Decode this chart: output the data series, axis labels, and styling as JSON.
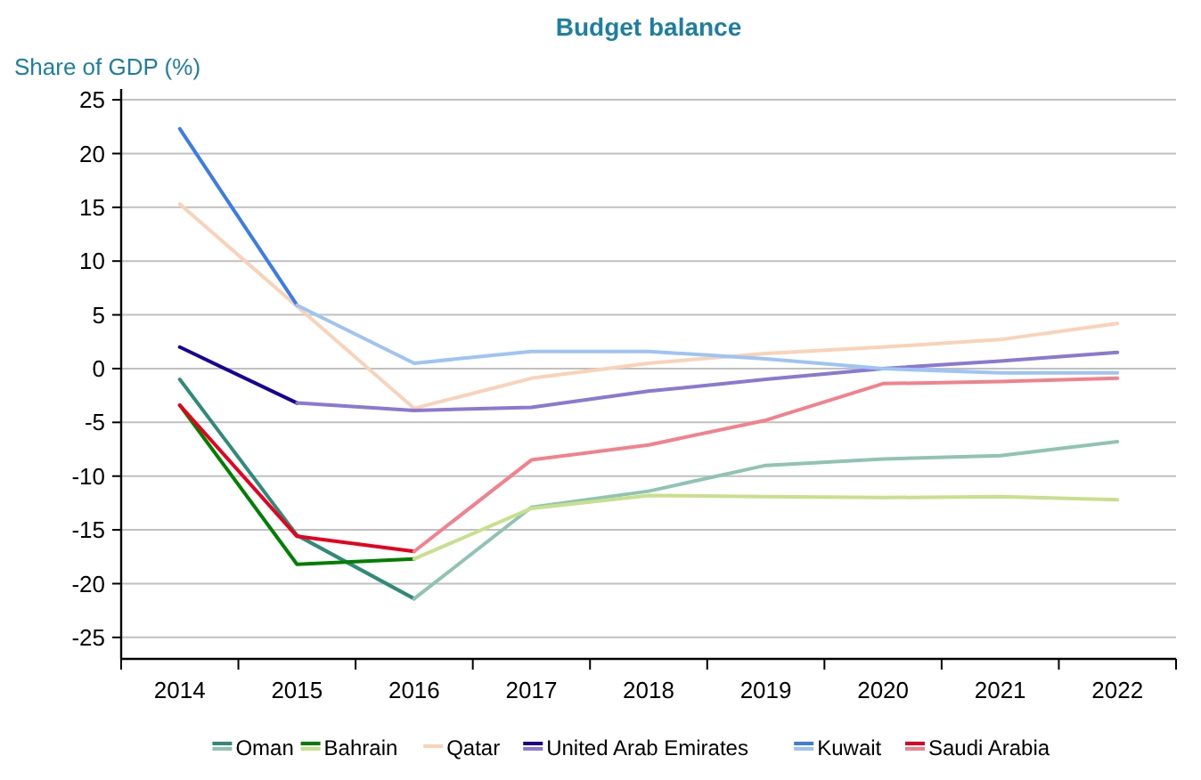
{
  "chart_data": {
    "type": "line",
    "title": "Budget balance",
    "ylabel": "Share of GDP (%)",
    "categories": [
      "2014",
      "2015",
      "2016",
      "2017",
      "2018",
      "2019",
      "2020",
      "2021",
      "2022"
    ],
    "ylim": [
      -27,
      26
    ],
    "yticks": [
      -25,
      -20,
      -15,
      -10,
      -5,
      0,
      5,
      10,
      15,
      20,
      25
    ],
    "grid": "y",
    "legend": "bottom",
    "marker": "none",
    "line_style": "solid",
    "series": [
      {
        "name": "Oman",
        "color": "#2e8b7a",
        "values": [
          -1.0,
          -15.5,
          -21.4,
          null,
          null,
          null,
          null,
          null,
          null
        ]
      },
      {
        "color": "#8fc4b4",
        "values": [
          null,
          null,
          -21.4,
          -12.9,
          -11.4,
          -9.0,
          -8.4,
          -8.1,
          -6.8
        ]
      },
      {
        "name": "Bahrain",
        "color": "#008000",
        "values": [
          -3.4,
          -18.2,
          -17.7,
          null,
          null,
          null,
          null,
          null,
          null
        ]
      },
      {
        "color": "#c8e08c",
        "values": [
          null,
          null,
          -17.7,
          -13.0,
          -11.8,
          -11.9,
          -12.0,
          -11.9,
          -12.2
        ]
      },
      {
        "name": "Qatar",
        "color": "#f9d2b8",
        "values": [
          15.3,
          5.8,
          -3.7,
          -0.9,
          0.5,
          1.4,
          2.0,
          2.7,
          4.2
        ]
      },
      {
        "name": "United Arab Emirates",
        "color": "#1a0099",
        "values": [
          2.0,
          -3.2,
          null,
          null,
          null,
          null,
          null,
          null,
          null
        ]
      },
      {
        "color": "#8a78d2",
        "values": [
          null,
          -3.2,
          -3.9,
          -3.6,
          -2.1,
          -1.0,
          0.0,
          0.7,
          1.5
        ]
      },
      {
        "name": "Kuwait",
        "color": "#3a7de8",
        "values": [
          22.3,
          5.9,
          null,
          null,
          null,
          null,
          null,
          null,
          null
        ]
      },
      {
        "color": "#9ec4f5",
        "values": [
          null,
          5.9,
          0.5,
          1.6,
          1.6,
          0.9,
          0.0,
          -0.4,
          -0.4
        ]
      },
      {
        "name": "Saudi Arabia",
        "color": "#e8001c",
        "values": [
          -3.4,
          -15.6,
          -17.0,
          null,
          null,
          null,
          null,
          null,
          null
        ]
      },
      {
        "color": "#f4808c",
        "values": [
          null,
          null,
          -17.0,
          -8.5,
          -7.1,
          -4.8,
          -1.4,
          -1.2,
          -0.9
        ]
      }
    ]
  }
}
